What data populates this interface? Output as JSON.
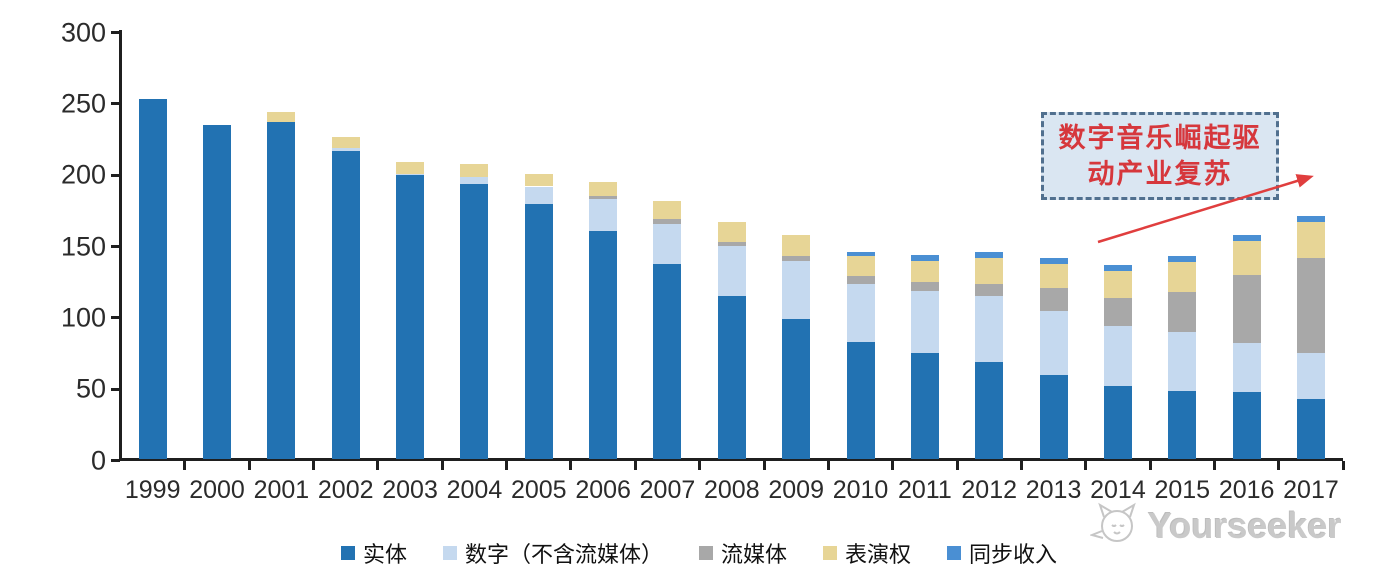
{
  "chart_data": {
    "type": "bar",
    "stacked": true,
    "categories": [
      "1999",
      "2000",
      "2001",
      "2002",
      "2003",
      "2004",
      "2005",
      "2006",
      "2007",
      "2008",
      "2009",
      "2010",
      "2011",
      "2012",
      "2013",
      "2014",
      "2015",
      "2016",
      "2017"
    ],
    "series": [
      {
        "name": "实体",
        "color": "#2272b2",
        "values": [
          252,
          234,
          236,
          216,
          199,
          193,
          179,
          160,
          137,
          114,
          98,
          82,
          74,
          68,
          59,
          51,
          48,
          47,
          42
        ]
      },
      {
        "name": "数字（不含流媒体）",
        "color": "#c5d9ef",
        "values": [
          0,
          0,
          0,
          2,
          1,
          5,
          12,
          22,
          28,
          35,
          41,
          41,
          44,
          46,
          45,
          42,
          41,
          34,
          32
        ]
      },
      {
        "name": "流媒体",
        "color": "#a8a8a8",
        "values": [
          0,
          0,
          0,
          0,
          0,
          0,
          0,
          2,
          3,
          3,
          3,
          5,
          6,
          9,
          16,
          20,
          28,
          48,
          67
        ]
      },
      {
        "name": "表演权",
        "color": "#e7d596",
        "values": [
          0,
          0,
          7,
          8,
          8,
          9,
          9,
          10,
          13,
          14,
          15,
          14,
          15,
          18,
          17,
          19,
          21,
          24,
          25
        ]
      },
      {
        "name": "同步收入",
        "color": "#4a8fd3",
        "values": [
          0,
          0,
          0,
          0,
          0,
          0,
          0,
          0,
          0,
          0,
          0,
          3,
          4,
          4,
          4,
          4,
          4,
          4,
          4
        ]
      }
    ],
    "title": "",
    "xlabel": "",
    "ylabel": "",
    "ylim": [
      0,
      300
    ],
    "yticks": [
      0,
      50,
      100,
      150,
      200,
      250,
      300
    ],
    "grid": false,
    "legend_position": "bottom",
    "annotation": {
      "line1": "数字音乐崛起驱",
      "line2": "动产业复苏",
      "full_text": "数字音乐崛起驱动产业复苏",
      "text_color": "#d6373c",
      "box_fill": "#dae6f2",
      "border_color": "#51708f",
      "arrow_color": "#e03e3e"
    }
  },
  "watermark": {
    "text": "Yourseeker"
  }
}
